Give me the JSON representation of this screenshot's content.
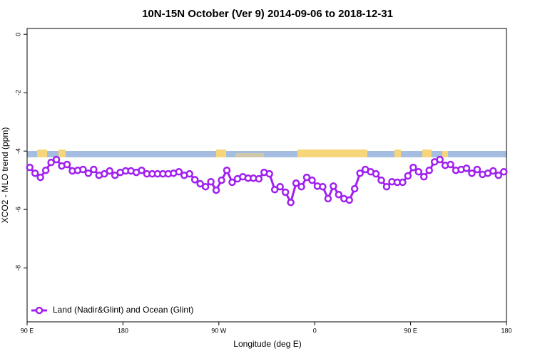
{
  "chart_data": {
    "type": "line",
    "title": "10N-15N October (Ver 9)   2014-09-06 to 2018-12-31",
    "x_label": "Longitude (deg E)",
    "y_label": "XCO2 - MLO trend (ppm)",
    "x": [
      92.5,
      97.5,
      102.5,
      107.5,
      112.5,
      117.5,
      122.5,
      127.5,
      132.5,
      137.5,
      142.5,
      147.5,
      152.5,
      157.5,
      162.5,
      167.5,
      172.5,
      177.5,
      182.5,
      187.5,
      192.5,
      197.5,
      202.5,
      207.5,
      212.5,
      217.5,
      222.5,
      227.5,
      232.5,
      237.5,
      242.5,
      247.5,
      252.5,
      257.5,
      262.5,
      267.5,
      272.5,
      277.5,
      282.5,
      287.5,
      292.5,
      297.5,
      302.5,
      307.5,
      312.5,
      317.5,
      322.5,
      327.5,
      332.5,
      337.5,
      342.5,
      347.5,
      352.5,
      357.5,
      362.5,
      367.5,
      372.5,
      377.5,
      382.5,
      387.5,
      392.5,
      397.5,
      402.5,
      407.5,
      412.5,
      417.5,
      422.5,
      427.5,
      432.5,
      437.5,
      442.5,
      447.5,
      452.5,
      457.5,
      462.5,
      467.5,
      472.5,
      477.5,
      482.5,
      487.5,
      492.5,
      497.5,
      502.5,
      507.5,
      512.5,
      517.5,
      522.5,
      527.5,
      532.5,
      537.5
    ],
    "series": [
      {
        "name": "Land (Nadir&Glint) and Ocean (Glint)",
        "color": "#a020f0",
        "values": [
          -4.56,
          -4.76,
          -4.9,
          -4.66,
          -4.39,
          -4.29,
          -4.51,
          -4.46,
          -4.68,
          -4.66,
          -4.63,
          -4.76,
          -4.63,
          -4.83,
          -4.78,
          -4.68,
          -4.83,
          -4.73,
          -4.68,
          -4.68,
          -4.73,
          -4.66,
          -4.78,
          -4.78,
          -4.78,
          -4.78,
          -4.78,
          -4.76,
          -4.71,
          -4.83,
          -4.78,
          -4.98,
          -5.12,
          -5.22,
          -5.05,
          -5.34,
          -5.0,
          -4.66,
          -5.07,
          -4.95,
          -4.88,
          -4.93,
          -4.93,
          -4.95,
          -4.73,
          -4.78,
          -5.32,
          -5.22,
          -5.41,
          -5.76,
          -5.1,
          -5.22,
          -4.9,
          -5.0,
          -5.2,
          -5.22,
          -5.63,
          -5.2,
          -5.49,
          -5.63,
          -5.68,
          -5.29,
          -4.76,
          -4.63,
          -4.71,
          -4.78,
          -5.0,
          -5.22,
          -5.05,
          -5.07,
          -5.07,
          -4.85,
          -4.56,
          -4.71,
          -4.88,
          -4.66,
          -4.37,
          -4.29,
          -4.49,
          -4.46,
          -4.66,
          -4.63,
          -4.59,
          -4.76,
          -4.63,
          -4.8,
          -4.76,
          -4.68,
          -4.83,
          -4.71
        ]
      }
    ],
    "xlim": [
      90,
      540
    ],
    "xticks": [
      {
        "value": 90,
        "label": "90 E"
      },
      180,
      {
        "value": 270,
        "label": "90 W"
      },
      {
        "value": 360,
        "label": "0"
      },
      {
        "value": 450,
        "label": "90 E"
      },
      {
        "value": 540,
        "label": "180"
      }
    ],
    "ylim": [
      -9.85,
      0.2
    ],
    "yticks": [
      0,
      -2,
      -4,
      -6,
      -8
    ],
    "legend": "bottom-left"
  }
}
